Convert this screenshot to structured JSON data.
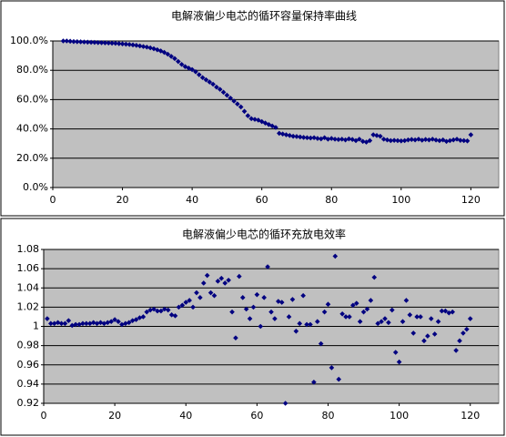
{
  "chart_data": [
    {
      "type": "scatter",
      "title": "电解液偏少电芯的循环容量保持率曲线",
      "x": [
        3,
        4,
        5,
        6,
        7,
        8,
        9,
        10,
        11,
        12,
        13,
        14,
        15,
        16,
        17,
        18,
        19,
        20,
        21,
        22,
        23,
        24,
        25,
        26,
        27,
        28,
        29,
        30,
        31,
        32,
        33,
        34,
        35,
        36,
        37,
        38,
        39,
        40,
        41,
        42,
        43,
        44,
        45,
        46,
        47,
        48,
        49,
        50,
        51,
        52,
        53,
        54,
        55,
        56,
        57,
        58,
        59,
        60,
        61,
        62,
        63,
        64,
        65,
        66,
        67,
        68,
        69,
        70,
        71,
        72,
        73,
        74,
        75,
        76,
        77,
        78,
        79,
        80,
        81,
        82,
        83,
        84,
        85,
        86,
        87,
        88,
        89,
        90,
        91,
        92,
        93,
        94,
        95,
        96,
        97,
        98,
        99,
        100,
        101,
        102,
        103,
        104,
        105,
        106,
        107,
        108,
        109,
        110,
        111,
        112,
        113,
        114,
        115,
        116,
        117,
        118,
        119,
        120
      ],
      "series": [
        {
          "color": "#000080",
          "values": [
            100,
            100,
            99.8,
            99.6,
            99.5,
            99.4,
            99.3,
            99.2,
            99.1,
            99,
            98.9,
            98.8,
            98.7,
            98.6,
            98.5,
            98.4,
            98.2,
            98,
            97.8,
            97.6,
            97.3,
            97,
            96.6,
            96.2,
            95.8,
            95.3,
            94.7,
            94,
            93.2,
            92.2,
            91,
            89.5,
            88,
            86,
            84,
            82.5,
            81.5,
            80.5,
            79,
            77,
            75,
            73.5,
            72,
            70.5,
            68.5,
            67,
            65,
            63,
            61,
            59,
            57,
            55,
            52,
            49,
            47,
            46.5,
            46,
            45,
            44,
            43,
            42,
            41,
            37,
            36.5,
            36,
            35.5,
            35,
            34.8,
            34.5,
            34.2,
            34,
            33.8,
            34,
            33.5,
            33.2,
            34,
            33,
            33.5,
            33,
            32.8,
            33,
            32.5,
            33.2,
            32.8,
            32,
            33,
            31.5,
            31,
            32,
            36,
            35.5,
            35,
            33,
            32.5,
            32,
            32.2,
            32,
            31.8,
            32,
            32.5,
            32.8,
            32.5,
            33,
            32.3,
            32.8,
            32.5,
            33,
            32.4,
            32,
            32.5,
            31.5,
            32,
            32.5,
            33,
            32.2,
            32,
            31.8,
            36
          ]
        }
      ],
      "xlim": [
        0,
        128
      ],
      "xticks": [
        0,
        20,
        40,
        60,
        80,
        100,
        120
      ],
      "ylim": [
        0,
        100
      ],
      "yticks": [
        {
          "value": 0,
          "label": "0.0%"
        },
        {
          "value": 20,
          "label": "20.0%"
        },
        {
          "value": 40,
          "label": "40.0%"
        },
        {
          "value": 60,
          "label": "60.0%"
        },
        {
          "value": 80,
          "label": "80.0%"
        },
        {
          "value": 100,
          "label": "100.0%"
        }
      ],
      "grid": true
    },
    {
      "type": "scatter",
      "title": "电解液偏少电芯的循环充放电效率",
      "x": [
        1,
        2,
        3,
        4,
        5,
        6,
        7,
        8,
        9,
        10,
        11,
        12,
        13,
        14,
        15,
        16,
        17,
        18,
        19,
        20,
        21,
        22,
        23,
        24,
        25,
        26,
        27,
        28,
        29,
        30,
        31,
        32,
        33,
        34,
        35,
        36,
        37,
        38,
        39,
        40,
        41,
        42,
        43,
        44,
        45,
        46,
        47,
        48,
        49,
        50,
        51,
        52,
        53,
        54,
        55,
        56,
        57,
        58,
        59,
        60,
        61,
        62,
        63,
        64,
        65,
        66,
        67,
        68,
        69,
        70,
        71,
        72,
        73,
        74,
        75,
        76,
        77,
        78,
        79,
        80,
        81,
        82,
        83,
        84,
        85,
        86,
        87,
        88,
        89,
        90,
        91,
        92,
        93,
        94,
        95,
        96,
        97,
        98,
        99,
        100,
        101,
        102,
        103,
        104,
        105,
        106,
        107,
        108,
        109,
        110,
        111,
        112,
        113,
        114,
        115,
        116,
        117,
        118,
        119,
        120
      ],
      "series": [
        {
          "color": "#000080",
          "values": [
            1.008,
            1.003,
            1.003,
            1.004,
            1.003,
            1.003,
            1.006,
            1.001,
            1.002,
            1.002,
            1.003,
            1.003,
            1.003,
            1.004,
            1.003,
            1.004,
            1.003,
            1.004,
            1.005,
            1.007,
            1.005,
            1.002,
            1.003,
            1.004,
            1.006,
            1.007,
            1.009,
            1.01,
            1.015,
            1.017,
            1.018,
            1.016,
            1.016,
            1.018,
            1.017,
            1.012,
            1.011,
            1.02,
            1.022,
            1.025,
            1.027,
            1.02,
            1.035,
            1.03,
            1.045,
            1.053,
            1.035,
            1.032,
            1.047,
            1.05,
            1.045,
            1.048,
            1.015,
            0.988,
            1.052,
            1.03,
            1.018,
            1.008,
            1.02,
            1.033,
            1.0,
            1.03,
            1.062,
            1.015,
            1.008,
            1.026,
            1.025,
            0.92,
            1.01,
            1.028,
            0.995,
            1.003,
            1.032,
            1.002,
            1.002,
            0.942,
            1.005,
            0.982,
            1.015,
            1.023,
            0.957,
            1.073,
            0.945,
            1.013,
            1.01,
            1.01,
            1.022,
            1.024,
            1.005,
            1.015,
            1.018,
            1.027,
            1.051,
            1.003,
            1.005,
            1.008,
            1.004,
            1.017,
            0.973,
            0.963,
            1.005,
            1.027,
            1.012,
            0.993,
            1.01,
            1.01,
            0.985,
            0.99,
            1.008,
            0.992,
            1.005,
            1.016,
            1.016,
            1.014,
            1.015,
            0.975,
            0.985,
            0.993,
            0.997,
            1.008
          ]
        }
      ],
      "xlim": [
        0,
        128
      ],
      "xticks": [
        0,
        20,
        40,
        60,
        80,
        100,
        120
      ],
      "ylim": [
        0.92,
        1.08
      ],
      "yticks": [
        0.92,
        0.94,
        0.96,
        0.98,
        1,
        1.02,
        1.04,
        1.06,
        1.08
      ],
      "grid": true
    }
  ]
}
